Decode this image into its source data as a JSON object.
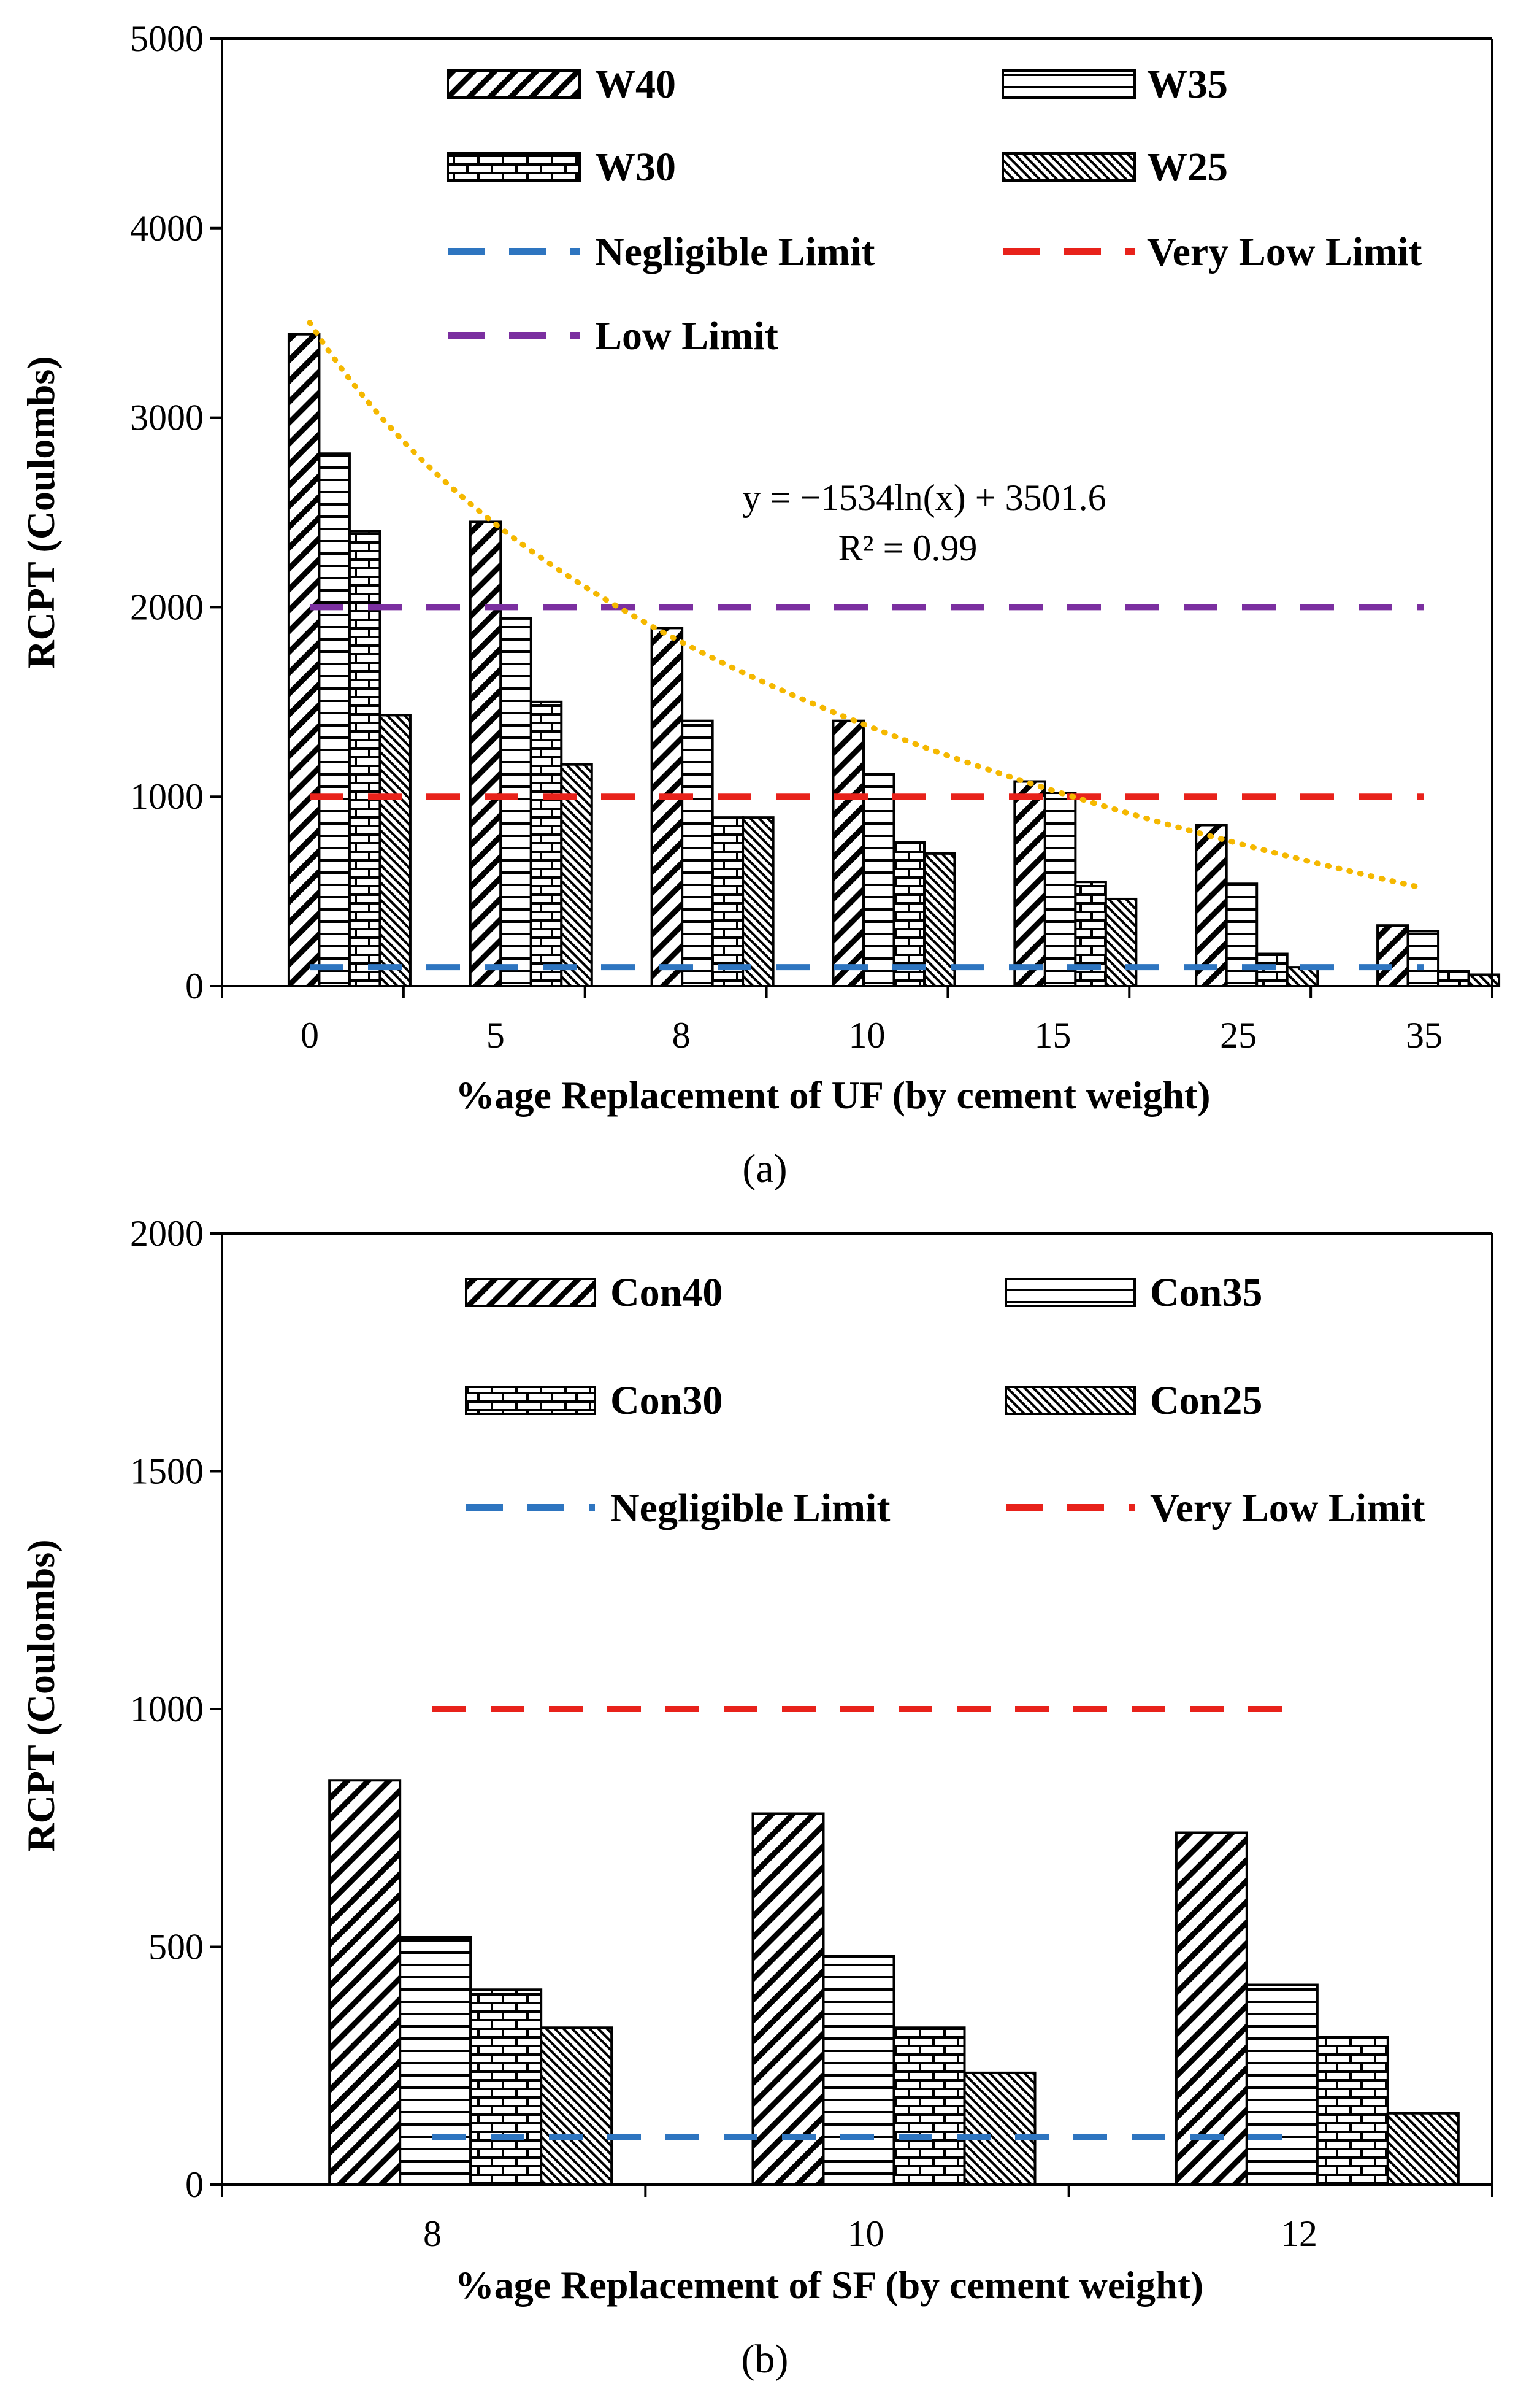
{
  "chart_data": [
    {
      "type": "bar",
      "panel_label": "(a)",
      "xlabel": "%age Replacement of UF (by cement weight)",
      "ylabel": "RCPT  (Coulombs)",
      "ylim": [
        0,
        5000
      ],
      "yticks": [
        0,
        1000,
        2000,
        3000,
        4000,
        5000
      ],
      "grid": false,
      "categories": [
        "0",
        "5",
        "8",
        "10",
        "15",
        "25",
        "35"
      ],
      "series": [
        {
          "name": "W40",
          "pattern": "diag-wide",
          "values": [
            3440,
            2450,
            1890,
            1400,
            1080,
            850,
            320
          ]
        },
        {
          "name": "W35",
          "pattern": "horiz",
          "values": [
            2810,
            1940,
            1400,
            1120,
            1020,
            540,
            290
          ]
        },
        {
          "name": "W30",
          "pattern": "brick",
          "values": [
            2400,
            1500,
            890,
            760,
            550,
            170,
            80
          ]
        },
        {
          "name": "W25",
          "pattern": "diag-fine",
          "values": [
            1430,
            1170,
            890,
            700,
            460,
            100,
            60
          ]
        }
      ],
      "reference_lines": [
        {
          "name": "Negligible Limit",
          "value": 100,
          "color": "#2e75c0"
        },
        {
          "name": "Very Low Limit",
          "value": 1000,
          "color": "#e8221b"
        },
        {
          "name": "Low Limit",
          "value": 2000,
          "color": "#7b2fa0"
        }
      ],
      "trendline": {
        "equation": "y = −1534ln(x) + 3501.6",
        "r2": "R² = 0.99",
        "a": -1534,
        "b": 3501.6,
        "color": "#f5b800"
      },
      "legend_position": "top"
    },
    {
      "type": "bar",
      "panel_label": "(b)",
      "xlabel": "%age Replacement of SF (by cement weight)",
      "ylabel": "RCPT  (Coulombs)",
      "ylim": [
        0,
        2000
      ],
      "yticks": [
        0,
        500,
        1000,
        1500,
        2000
      ],
      "grid": false,
      "categories": [
        "8",
        "10",
        "12"
      ],
      "series": [
        {
          "name": "Con40",
          "pattern": "diag-wide",
          "values": [
            850,
            780,
            740
          ]
        },
        {
          "name": "Con35",
          "pattern": "horiz",
          "values": [
            520,
            480,
            420
          ]
        },
        {
          "name": "Con30",
          "pattern": "brick",
          "values": [
            410,
            330,
            310
          ]
        },
        {
          "name": "Con25",
          "pattern": "diag-fine",
          "values": [
            330,
            235,
            150
          ]
        }
      ],
      "reference_lines": [
        {
          "name": "Negligible Limit",
          "value": 100,
          "color": "#2e75c0"
        },
        {
          "name": "Very Low Limit",
          "value": 1000,
          "color": "#e8221b"
        }
      ],
      "legend_position": "top"
    }
  ]
}
